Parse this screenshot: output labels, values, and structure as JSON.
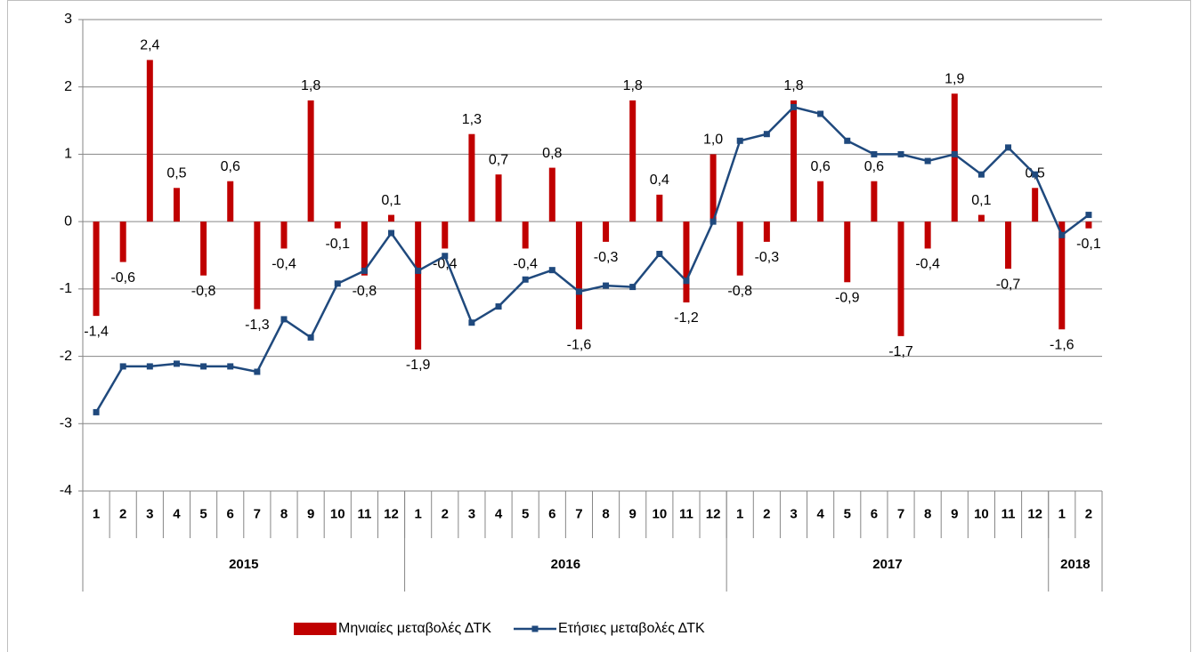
{
  "chart_data": {
    "type": "bar",
    "categories": [
      "1",
      "2",
      "3",
      "4",
      "5",
      "6",
      "7",
      "8",
      "9",
      "10",
      "11",
      "12",
      "1",
      "2",
      "3",
      "4",
      "5",
      "6",
      "7",
      "8",
      "9",
      "10",
      "11",
      "12",
      "1",
      "2",
      "3",
      "4",
      "5",
      "6",
      "7",
      "8",
      "9",
      "10",
      "11",
      "12",
      "1",
      "2"
    ],
    "groups": [
      {
        "name": "2015",
        "count": 12
      },
      {
        "name": "2016",
        "count": 12
      },
      {
        "name": "2017",
        "count": 12
      },
      {
        "name": "2018",
        "count": 2
      }
    ],
    "series": [
      {
        "name": "Μηνιαίες μεταβολές ΔΤΚ",
        "type": "bar",
        "color": "#c00000",
        "values": [
          -1.4,
          -0.6,
          2.4,
          0.5,
          -0.8,
          0.6,
          -1.3,
          -0.4,
          1.8,
          -0.1,
          -0.8,
          0.1,
          -1.9,
          -0.4,
          1.3,
          0.7,
          -0.4,
          0.8,
          -1.6,
          -0.3,
          1.8,
          0.4,
          -1.2,
          1.0,
          -0.8,
          -0.3,
          1.8,
          0.6,
          -0.9,
          0.6,
          -1.7,
          -0.4,
          1.9,
          0.1,
          -0.7,
          0.5,
          -1.6,
          -0.1
        ],
        "value_labels": [
          "-1,4",
          "-0,6",
          "2,4",
          "0,5",
          "-0,8",
          "0,6",
          "-1,3",
          "-0,4",
          "1,8",
          "-0,1",
          "-0,8",
          "0,1",
          "-1,9",
          "-0,4",
          "1,3",
          "0,7",
          "-0,4",
          "0,8",
          "-1,6",
          "-0,3",
          "1,8",
          "0,4",
          "-1,2",
          "1,0",
          "-0,8",
          "-0,3",
          "1,8",
          "0,6",
          "-0,9",
          "0,6",
          "-1,7",
          "-0,4",
          "1,9",
          "0,1",
          "-0,7",
          "0,5",
          "-1,6",
          "-0,1"
        ]
      },
      {
        "name": "Ετήσιες μεταβολές ΔΤΚ",
        "type": "line",
        "color": "#1f497d",
        "values": [
          -2.83,
          -2.15,
          -2.15,
          -2.11,
          -2.15,
          -2.15,
          -2.23,
          -1.45,
          -1.72,
          -0.92,
          -0.73,
          -0.17,
          -0.73,
          -0.51,
          -1.5,
          -1.26,
          -0.86,
          -0.72,
          -1.04,
          -0.95,
          -0.97,
          -0.48,
          -0.88,
          0.0,
          1.2,
          1.3,
          1.7,
          1.6,
          1.2,
          1.0,
          1.0,
          0.9,
          1.0,
          0.7,
          1.1,
          0.7,
          -0.2,
          0.1
        ]
      }
    ],
    "ylim": [
      -4,
      3
    ],
    "yticks": [
      -4,
      -3,
      -2,
      -1,
      0,
      1,
      2,
      3
    ],
    "grid": true
  }
}
